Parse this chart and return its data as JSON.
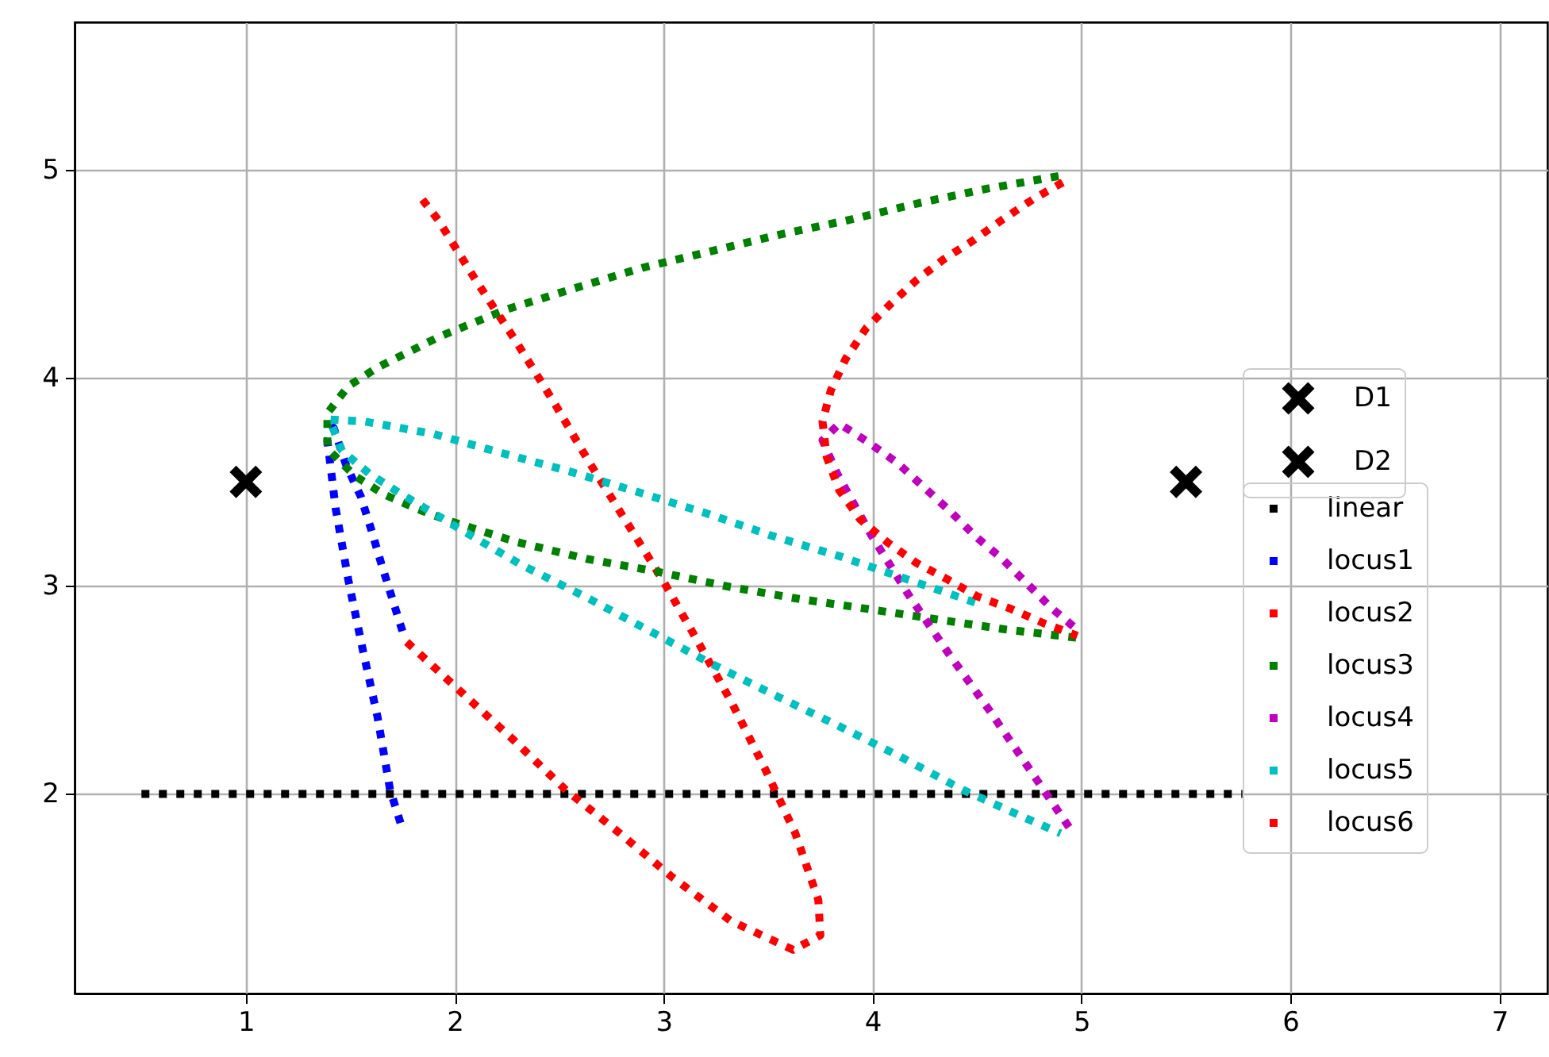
{
  "chart_data": {
    "type": "line",
    "xlim": [
      0.18,
      7.23
    ],
    "ylim": [
      1.04,
      5.71
    ],
    "xticks": [
      1,
      2,
      3,
      4,
      5,
      6,
      7
    ],
    "yticks": [
      2,
      3,
      4,
      5
    ],
    "grid": true,
    "legend": "right",
    "series": [
      {
        "name": "D1",
        "type": "scatter",
        "marker": "cross",
        "color": "#000000",
        "x": [
          1
        ],
        "values": [
          3.5
        ]
      },
      {
        "name": "D2",
        "type": "scatter",
        "marker": "cross",
        "color": "#000000",
        "x": [
          5.5
        ],
        "values": [
          3.5
        ]
      },
      {
        "name": "linear",
        "line_style": "dotted",
        "color": "#000000",
        "x": [
          0.5,
          5.77
        ],
        "values": [
          2,
          2
        ]
      },
      {
        "name": "locus1",
        "line_style": "dotted",
        "color": "#0000ff",
        "x": [
          1.74,
          1.69,
          1.63,
          1.56,
          1.49,
          1.43,
          1.39,
          1.42,
          1.48,
          1.55,
          1.6,
          1.65,
          1.7,
          1.75
        ],
        "values": [
          1.86,
          2.02,
          2.37,
          2.69,
          3.03,
          3.37,
          3.7,
          3.76,
          3.58,
          3.43,
          3.27,
          3.1,
          2.94,
          2.78
        ]
      },
      {
        "name": "locus2",
        "line_style": "dotted",
        "color": "#ff0000",
        "x": [
          1.77,
          2.03,
          2.28,
          2.53,
          2.79,
          3.04,
          3.32,
          3.62,
          3.75,
          3.74,
          3.63,
          3.49,
          3.33,
          3.17,
          3.0,
          2.82,
          2.64,
          2.47,
          2.29,
          2.1,
          1.92,
          1.82
        ],
        "values": [
          2.73,
          2.49,
          2.26,
          2.02,
          1.81,
          1.6,
          1.39,
          1.25,
          1.32,
          1.49,
          1.81,
          2.11,
          2.43,
          2.72,
          3.02,
          3.31,
          3.6,
          3.89,
          4.18,
          4.47,
          4.76,
          4.89
        ]
      },
      {
        "name": "locus3",
        "line_style": "dotted",
        "color": "#008000",
        "x": [
          4.89,
          4.55,
          4.22,
          3.89,
          3.56,
          3.23,
          2.9,
          2.57,
          2.25,
          1.93,
          1.63,
          1.49,
          1.39,
          1.39,
          1.52,
          1.66,
          1.82,
          1.98,
          2.3,
          2.63,
          2.96,
          3.29,
          3.63,
          3.97,
          4.3,
          4.64,
          4.98
        ],
        "values": [
          4.97,
          4.91,
          4.84,
          4.76,
          4.69,
          4.61,
          4.53,
          4.43,
          4.33,
          4.2,
          4.05,
          3.96,
          3.83,
          3.66,
          3.53,
          3.44,
          3.37,
          3.31,
          3.21,
          3.13,
          3.07,
          3.0,
          2.94,
          2.89,
          2.84,
          2.79,
          2.75
        ]
      },
      {
        "name": "locus4",
        "line_style": "dotted",
        "color": "#bf00bf",
        "x": [
          4.94,
          4.75,
          4.56,
          4.36,
          4.17,
          3.99,
          3.83,
          3.76,
          3.84,
          3.98,
          4.12,
          4.25,
          4.37,
          4.49,
          4.62,
          4.74,
          4.86,
          4.99
        ],
        "values": [
          1.84,
          2.12,
          2.4,
          2.68,
          2.96,
          3.25,
          3.54,
          3.7,
          3.78,
          3.69,
          3.59,
          3.47,
          3.36,
          3.24,
          3.13,
          3.01,
          2.89,
          2.78
        ]
      },
      {
        "name": "locus5",
        "line_style": "dotted",
        "color": "#00bfbf",
        "x": [
          4.49,
          4.17,
          3.85,
          3.52,
          3.2,
          2.88,
          2.55,
          2.22,
          1.9,
          1.57,
          1.4,
          1.46,
          1.59,
          1.73,
          2.03,
          2.32,
          2.62,
          2.92,
          3.22,
          3.52,
          3.83,
          4.13,
          4.43,
          4.74,
          4.9
        ],
        "values": [
          2.92,
          3.03,
          3.14,
          3.24,
          3.35,
          3.45,
          3.55,
          3.64,
          3.73,
          3.79,
          3.8,
          3.65,
          3.54,
          3.45,
          3.27,
          3.1,
          2.95,
          2.79,
          2.63,
          2.48,
          2.33,
          2.18,
          2.02,
          1.88,
          1.81
        ]
      },
      {
        "name": "locus6",
        "line_style": "dotted",
        "color": "#ff0000",
        "x": [
          4.91,
          4.77,
          4.62,
          4.48,
          4.34,
          4.21,
          4.08,
          3.97,
          3.87,
          3.8,
          3.76,
          3.78,
          3.84,
          3.94,
          4.07,
          4.21,
          4.36,
          4.5,
          4.66,
          4.82,
          4.98
        ],
        "values": [
          4.94,
          4.86,
          4.76,
          4.66,
          4.57,
          4.47,
          4.35,
          4.24,
          4.09,
          3.94,
          3.79,
          3.62,
          3.46,
          3.32,
          3.21,
          3.11,
          3.03,
          2.95,
          2.89,
          2.82,
          2.76
        ]
      }
    ]
  }
}
